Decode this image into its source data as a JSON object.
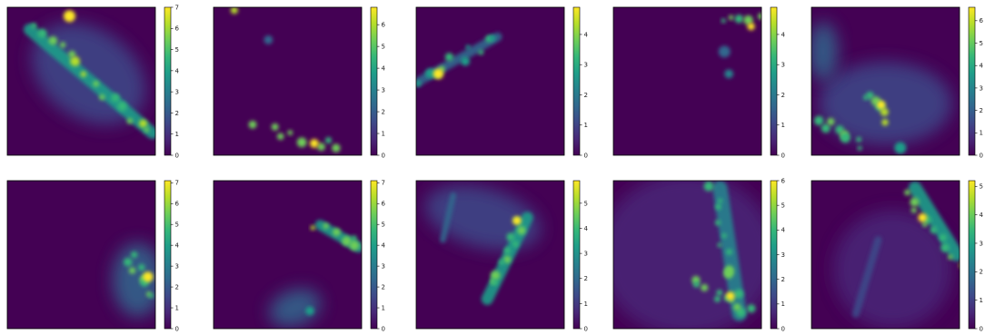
{
  "chart_data": [
    {
      "type": "heatmap",
      "colormap": "viridis",
      "colorbar": {
        "min": 0,
        "max": 7.0,
        "ticks": [
          0,
          1,
          2,
          3,
          4,
          5,
          6,
          7
        ],
        "tick_labels": [
          "0",
          "1",
          "2",
          "3",
          "4",
          "5",
          "6",
          "7"
        ]
      },
      "features": [
        {
          "kind": "haze",
          "x": 0.55,
          "y": 0.45,
          "rx": 0.42,
          "ry": 0.3,
          "rot": 35,
          "level": 0.18
        },
        {
          "kind": "band",
          "x0": 0.15,
          "y0": 0.15,
          "x1": 0.98,
          "y1": 0.85,
          "w": 0.08,
          "level": 0.5
        },
        {
          "kind": "spots",
          "x0": 0.18,
          "y0": 0.12,
          "x1": 0.97,
          "y1": 0.85,
          "n": 14,
          "level": 0.9
        },
        {
          "kind": "spot",
          "x": 0.42,
          "y": 0.06,
          "r": 0.04,
          "level": 1.0
        }
      ]
    },
    {
      "type": "heatmap",
      "colormap": "viridis",
      "colorbar": {
        "min": 0,
        "max": 6.8,
        "ticks": [
          0,
          1,
          2,
          3,
          4,
          5,
          6
        ],
        "tick_labels": [
          "0",
          "1",
          "2",
          "3",
          "4",
          "5",
          "6"
        ]
      },
      "features": [
        {
          "kind": "spot",
          "x": 0.14,
          "y": 0.02,
          "r": 0.025,
          "level": 0.85
        },
        {
          "kind": "spot",
          "x": 0.37,
          "y": 0.22,
          "r": 0.03,
          "level": 0.35
        },
        {
          "kind": "spots",
          "x0": 0.3,
          "y0": 0.8,
          "x1": 0.85,
          "y1": 0.96,
          "n": 8,
          "level": 0.85
        },
        {
          "kind": "spot",
          "x": 0.68,
          "y": 0.92,
          "r": 0.03,
          "level": 1.0
        }
      ]
    },
    {
      "type": "heatmap",
      "colormap": "viridis",
      "colorbar": {
        "min": 0,
        "max": 4.9,
        "ticks": [
          0,
          1,
          2,
          3,
          4
        ],
        "tick_labels": [
          "0",
          "1",
          "2",
          "3",
          "4"
        ]
      },
      "features": [
        {
          "kind": "band",
          "x0": 0.02,
          "y0": 0.5,
          "x1": 0.55,
          "y1": 0.2,
          "w": 0.06,
          "level": 0.35
        },
        {
          "kind": "spots",
          "x0": 0.03,
          "y0": 0.48,
          "x1": 0.55,
          "y1": 0.22,
          "n": 10,
          "level": 0.75
        },
        {
          "kind": "spot",
          "x": 0.15,
          "y": 0.45,
          "r": 0.035,
          "level": 1.0
        }
      ]
    },
    {
      "type": "heatmap",
      "colormap": "viridis",
      "colorbar": {
        "min": 0,
        "max": 4.9,
        "ticks": [
          0,
          1,
          2,
          3,
          4
        ],
        "tick_labels": [
          "0",
          "1",
          "2",
          "3",
          "4"
        ]
      },
      "features": [
        {
          "kind": "spots",
          "x0": 0.72,
          "y0": 0.12,
          "x1": 0.98,
          "y1": 0.05,
          "n": 5,
          "level": 0.9
        },
        {
          "kind": "spot",
          "x": 0.93,
          "y": 0.13,
          "r": 0.025,
          "level": 1.0
        },
        {
          "kind": "spot",
          "x": 0.75,
          "y": 0.3,
          "r": 0.04,
          "level": 0.3
        },
        {
          "kind": "spot",
          "x": 0.78,
          "y": 0.45,
          "r": 0.03,
          "level": 0.45
        }
      ]
    },
    {
      "type": "heatmap",
      "colormap": "viridis",
      "colorbar": {
        "min": 0,
        "max": 6.6,
        "ticks": [
          0,
          1,
          2,
          3,
          4,
          5,
          6
        ],
        "tick_labels": [
          "0",
          "1",
          "2",
          "3",
          "4",
          "5",
          "6"
        ]
      },
      "features": [
        {
          "kind": "haze",
          "x": 0.5,
          "y": 0.65,
          "rx": 0.45,
          "ry": 0.28,
          "rot": 0,
          "level": 0.22
        },
        {
          "kind": "haze",
          "x": 0.08,
          "y": 0.3,
          "rx": 0.1,
          "ry": 0.2,
          "rot": 0,
          "level": 0.35
        },
        {
          "kind": "spots",
          "x0": 0.4,
          "y0": 0.58,
          "x1": 0.5,
          "y1": 0.74,
          "n": 6,
          "level": 0.9
        },
        {
          "kind": "spots",
          "x0": 0.05,
          "y0": 0.75,
          "x1": 0.35,
          "y1": 0.95,
          "n": 8,
          "level": 0.75
        },
        {
          "kind": "spot",
          "x": 0.47,
          "y": 0.66,
          "r": 0.03,
          "level": 1.0
        },
        {
          "kind": "spot",
          "x": 0.6,
          "y": 0.95,
          "r": 0.04,
          "level": 0.55
        }
      ]
    },
    {
      "type": "heatmap",
      "colormap": "viridis",
      "colorbar": {
        "min": 0,
        "max": 7.1,
        "ticks": [
          0,
          1,
          2,
          3,
          4,
          5,
          6,
          7
        ],
        "tick_labels": [
          "0",
          "1",
          "2",
          "3",
          "4",
          "5",
          "6",
          "7"
        ]
      },
      "features": [
        {
          "kind": "haze",
          "x": 0.88,
          "y": 0.67,
          "rx": 0.17,
          "ry": 0.25,
          "rot": 0,
          "level": 0.3
        },
        {
          "kind": "spots",
          "x0": 0.82,
          "y0": 0.5,
          "x1": 0.98,
          "y1": 0.8,
          "n": 9,
          "level": 0.85
        },
        {
          "kind": "spot",
          "x": 0.95,
          "y": 0.65,
          "r": 0.035,
          "level": 1.0
        }
      ]
    },
    {
      "type": "heatmap",
      "colormap": "viridis",
      "colorbar": {
        "min": 0,
        "max": 7.1,
        "ticks": [
          0,
          1,
          2,
          3,
          4,
          5,
          6,
          7
        ],
        "tick_labels": [
          "0",
          "1",
          "2",
          "3",
          "4",
          "5",
          "6",
          "7"
        ]
      },
      "features": [
        {
          "kind": "band",
          "x0": 0.72,
          "y0": 0.3,
          "x1": 0.98,
          "y1": 0.45,
          "w": 0.07,
          "level": 0.6
        },
        {
          "kind": "spots",
          "x0": 0.7,
          "y0": 0.3,
          "x1": 0.98,
          "y1": 0.42,
          "n": 6,
          "level": 0.9
        },
        {
          "kind": "haze",
          "x": 0.55,
          "y": 0.86,
          "rx": 0.18,
          "ry": 0.12,
          "rot": -20,
          "level": 0.3
        },
        {
          "kind": "spot",
          "x": 0.65,
          "y": 0.88,
          "r": 0.03,
          "level": 0.6
        }
      ]
    },
    {
      "type": "heatmap",
      "colormap": "viridis",
      "colorbar": {
        "min": 0,
        "max": 5.9,
        "ticks": [
          0,
          1,
          2,
          3,
          4,
          5
        ],
        "tick_labels": [
          "0",
          "1",
          "2",
          "3",
          "4",
          "5"
        ]
      },
      "features": [
        {
          "kind": "haze",
          "x": 0.45,
          "y": 0.25,
          "rx": 0.4,
          "ry": 0.2,
          "rot": 15,
          "level": 0.18
        },
        {
          "kind": "band",
          "x0": 0.75,
          "y0": 0.25,
          "x1": 0.48,
          "y1": 0.8,
          "w": 0.08,
          "level": 0.55
        },
        {
          "kind": "spots",
          "x0": 0.7,
          "y0": 0.28,
          "x1": 0.5,
          "y1": 0.7,
          "n": 10,
          "level": 0.85
        },
        {
          "kind": "spot",
          "x": 0.68,
          "y": 0.27,
          "r": 0.03,
          "level": 1.0
        },
        {
          "kind": "band",
          "x0": 0.25,
          "y0": 0.1,
          "x1": 0.18,
          "y1": 0.4,
          "w": 0.04,
          "level": 0.3
        }
      ]
    },
    {
      "type": "heatmap",
      "colormap": "viridis",
      "colorbar": {
        "min": 0,
        "max": 6.0,
        "ticks": [
          0,
          1,
          2,
          3,
          4,
          5,
          6
        ],
        "tick_labels": [
          "0",
          "1",
          "2",
          "3",
          "4",
          "5",
          "6"
        ]
      },
      "features": [
        {
          "kind": "haze",
          "x": 0.5,
          "y": 0.5,
          "rx": 0.6,
          "ry": 0.55,
          "rot": 0,
          "level": 0.15
        },
        {
          "kind": "band",
          "x0": 0.72,
          "y0": 0.05,
          "x1": 0.85,
          "y1": 0.9,
          "w": 0.1,
          "level": 0.45
        },
        {
          "kind": "spots",
          "x0": 0.68,
          "y0": 0.05,
          "x1": 0.85,
          "y1": 0.9,
          "n": 12,
          "level": 0.8
        },
        {
          "kind": "spots",
          "x0": 0.55,
          "y0": 0.7,
          "x1": 0.9,
          "y1": 0.85,
          "n": 8,
          "level": 0.85
        },
        {
          "kind": "spot",
          "x": 0.79,
          "y": 0.78,
          "r": 0.03,
          "level": 1.0
        }
      ]
    },
    {
      "type": "heatmap",
      "colormap": "viridis",
      "colorbar": {
        "min": 0,
        "max": 5.2,
        "ticks": [
          0,
          1,
          2,
          3,
          4,
          5
        ],
        "tick_labels": [
          "0",
          "1",
          "2",
          "3",
          "4",
          "5"
        ]
      },
      "features": [
        {
          "kind": "haze",
          "x": 0.55,
          "y": 0.6,
          "rx": 0.4,
          "ry": 0.4,
          "rot": 0,
          "level": 0.15
        },
        {
          "kind": "band",
          "x0": 0.7,
          "y0": 0.05,
          "x1": 0.98,
          "y1": 0.5,
          "w": 0.09,
          "level": 0.5
        },
        {
          "kind": "spots",
          "x0": 0.65,
          "y0": 0.1,
          "x1": 0.98,
          "y1": 0.55,
          "n": 10,
          "level": 0.85
        },
        {
          "kind": "spot",
          "x": 0.75,
          "y": 0.25,
          "r": 0.03,
          "level": 1.0
        },
        {
          "kind": "band",
          "x0": 0.45,
          "y0": 0.4,
          "x1": 0.3,
          "y1": 0.9,
          "w": 0.05,
          "level": 0.25
        }
      ]
    }
  ]
}
